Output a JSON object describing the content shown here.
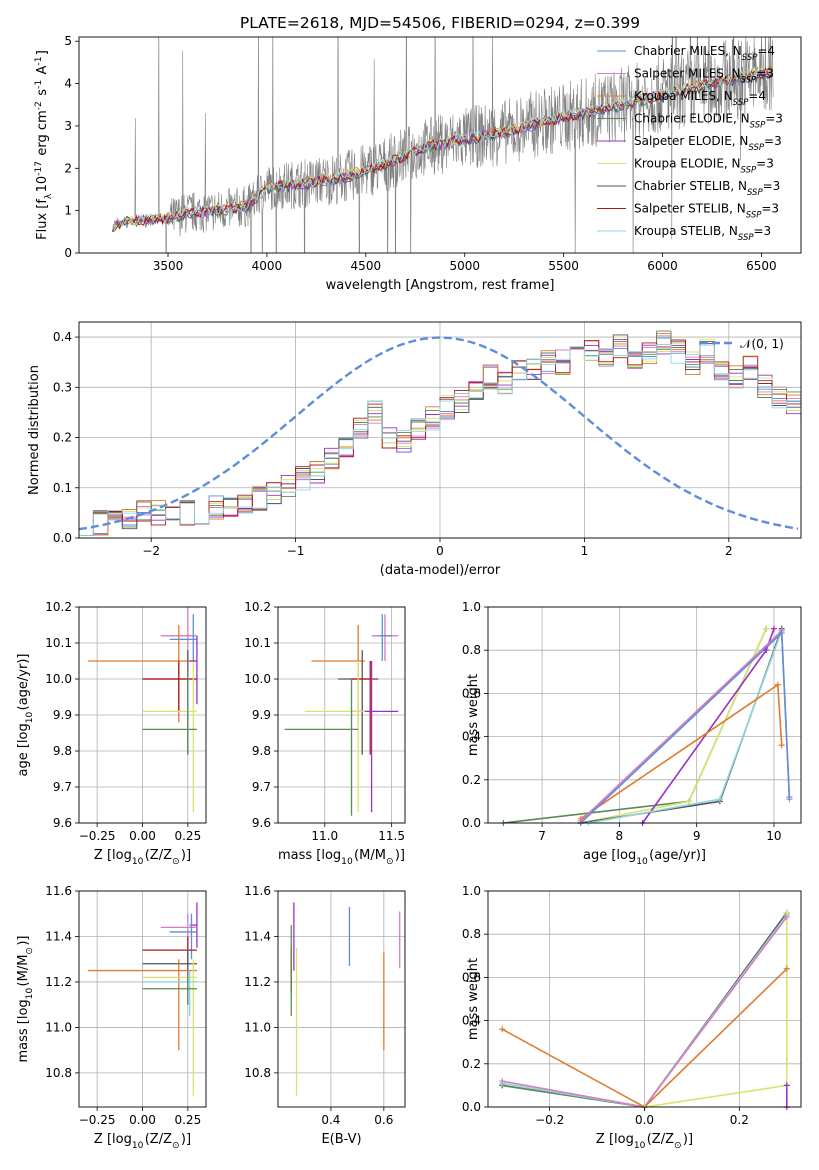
{
  "colors": {
    "Chabrier MILES": "#5b8fd6",
    "Salpeter MILES": "#d97cc0",
    "Kroupa MILES": "#e07b2e",
    "Chabrier ELODIE": "#5a8a5a",
    "Salpeter ELODIE": "#9b30c8",
    "Kroupa ELODIE": "#dbe46a",
    "Chabrier STELIB": "#555555",
    "Salpeter STELIB": "#b01818",
    "Kroupa STELIB": "#8fd6e0",
    "spectrum": "#808080",
    "normal": "#5b8fd6"
  },
  "chart_data": [
    {
      "id": "spectrum",
      "type": "line",
      "title": "PLATE=2618, MJD=54506, FIBERID=0294, z=0.399",
      "xlabel": "wavelength [Angstrom, rest frame]",
      "ylabel": "Flux [f$_\\lambda$10$^{-17}$ erg cm$^{-2}$ s$^{-1}$ A$^{-1}$]",
      "xlim": [
        3050,
        6700
      ],
      "ylim": [
        0,
        5.1
      ],
      "xticks": [
        3500,
        4000,
        4500,
        5000,
        5500,
        6000,
        6500
      ],
      "yticks": [
        0,
        1,
        2,
        3,
        4,
        5
      ],
      "grid": false,
      "legend_position": "top-right",
      "legend": [
        {
          "label": "Chabrier MILES, N",
          "sub": "SSP",
          "tail": "=4",
          "key": "Chabrier MILES"
        },
        {
          "label": "Salpeter MILES, N",
          "sub": "SSP",
          "tail": "=3",
          "key": "Salpeter MILES"
        },
        {
          "label": "Kroupa MILES, N",
          "sub": "SSP",
          "tail": "=4",
          "key": "Kroupa MILES"
        },
        {
          "label": "Chabrier ELODIE, N",
          "sub": "SSP",
          "tail": "=3",
          "key": "Chabrier ELODIE"
        },
        {
          "label": "Salpeter ELODIE, N",
          "sub": "SSP",
          "tail": "=3",
          "key": "Salpeter ELODIE"
        },
        {
          "label": "Kroupa ELODIE, N",
          "sub": "SSP",
          "tail": "=3",
          "key": "Kroupa ELODIE"
        },
        {
          "label": "Chabrier STELIB, N",
          "sub": "SSP",
          "tail": "=3",
          "key": "Chabrier STELIB"
        },
        {
          "label": "Salpeter STELIB, N",
          "sub": "SSP",
          "tail": "=3",
          "key": "Salpeter STELIB"
        },
        {
          "label": "Kroupa STELIB, N",
          "sub": "SSP",
          "tail": "=3",
          "key": "Kroupa STELIB"
        }
      ],
      "data_x_range": [
        3220,
        6560
      ],
      "model_continuum": [
        [
          3220,
          0.65
        ],
        [
          3300,
          0.75
        ],
        [
          3500,
          0.8
        ],
        [
          3600,
          0.95
        ],
        [
          3750,
          1.0
        ],
        [
          3900,
          1.1
        ],
        [
          4000,
          1.55
        ],
        [
          4200,
          1.65
        ],
        [
          4400,
          1.8
        ],
        [
          4600,
          2.1
        ],
        [
          4800,
          2.5
        ],
        [
          5000,
          2.7
        ],
        [
          5200,
          2.85
        ],
        [
          5400,
          3.1
        ],
        [
          5600,
          3.3
        ],
        [
          5800,
          3.5
        ],
        [
          6000,
          3.75
        ],
        [
          6200,
          3.95
        ],
        [
          6400,
          4.15
        ],
        [
          6560,
          4.3
        ]
      ]
    },
    {
      "id": "residuals",
      "type": "line",
      "xlabel": "(data-model)/error",
      "ylabel": "Normed distribution",
      "xlim": [
        -2.5,
        2.5
      ],
      "ylim": [
        0,
        0.43
      ],
      "xticks": [
        -2,
        -1,
        0,
        1,
        2
      ],
      "yticks": [
        0.0,
        0.1,
        0.2,
        0.3,
        0.4
      ],
      "grid": true,
      "legend_position": "top-right",
      "normal_label": "𝒩(0, 1)",
      "bin_width": 0.1,
      "hist_base": [
        0.03,
        0.03,
        0.04,
        0.04,
        0.05,
        0.05,
        0.04,
        0.05,
        0.05,
        0.06,
        0.06,
        0.07,
        0.08,
        0.09,
        0.1,
        0.12,
        0.13,
        0.16,
        0.18,
        0.22,
        0.25,
        0.2,
        0.19,
        0.22,
        0.24,
        0.26,
        0.27,
        0.29,
        0.32,
        0.31,
        0.33,
        0.34,
        0.35,
        0.35,
        0.36,
        0.37,
        0.36,
        0.38,
        0.35,
        0.37,
        0.39,
        0.37,
        0.35,
        0.37,
        0.33,
        0.32,
        0.34,
        0.3,
        0.28,
        0.27,
        0.24,
        0.22,
        0.21,
        0.19,
        0.17,
        0.14,
        0.16,
        0.12,
        0.12,
        0.11,
        0.09,
        0.09,
        0.08,
        0.07,
        0.06,
        0.06,
        0.05,
        0.06,
        0.05,
        0.05
      ]
    },
    {
      "id": "age-vs-Z",
      "type": "scatter",
      "xlabel": "Z [log$_{10}$(Z/Z$_\\odot$)]",
      "ylabel": "age  [log$_{10}$(age/yr)]",
      "xlim": [
        -0.35,
        0.35
      ],
      "ylim": [
        9.6,
        10.2
      ],
      "xticks": [
        -0.25,
        0.0,
        0.25
      ],
      "yticks": [
        9.6,
        9.7,
        9.8,
        9.9,
        10.0,
        10.1,
        10.2
      ],
      "grid": true,
      "errorbars": [
        {
          "key": "Salpeter MILES",
          "x": 0.25,
          "xlo": 0.1,
          "xhi": 0.3,
          "y": 10.12,
          "ylo": 10.05,
          "yhi": 10.2
        },
        {
          "key": "Kroupa MILES",
          "x": 0.2,
          "xlo": -0.3,
          "xhi": 0.3,
          "y": 10.05,
          "ylo": 9.88,
          "yhi": 10.15
        },
        {
          "key": "Chabrier MILES",
          "x": 0.28,
          "xlo": 0.15,
          "xhi": 0.3,
          "y": 10.11,
          "ylo": 10.05,
          "yhi": 10.18
        },
        {
          "key": "Chabrier STELIB",
          "x": 0.25,
          "xlo": 0.0,
          "xhi": 0.3,
          "y": 10.0,
          "ylo": 9.79,
          "yhi": 10.08
        },
        {
          "key": "Salpeter STELIB",
          "x": 0.2,
          "xlo": 0.0,
          "xhi": 0.3,
          "y": 10.0,
          "ylo": 9.91,
          "yhi": 10.05
        },
        {
          "key": "Kroupa ELODIE",
          "x": 0.28,
          "xlo": 0.0,
          "xhi": 0.3,
          "y": 9.91,
          "ylo": 9.63,
          "yhi": 10.05
        },
        {
          "key": "Chabrier ELODIE",
          "x": 0.25,
          "xlo": 0.0,
          "xhi": 0.3,
          "y": 9.86,
          "ylo": 9.79,
          "yhi": 10.02
        },
        {
          "key": "Salpeter ELODIE",
          "x": 0.3,
          "xlo": 0.26,
          "xhi": 0.3,
          "y": 10.05,
          "ylo": 9.93,
          "yhi": 10.12
        }
      ]
    },
    {
      "id": "age-vs-mass",
      "type": "scatter",
      "xlabel": "mass [log$_{10}$(M/M$_\\odot$)]",
      "ylabel": "",
      "xlim": [
        10.65,
        11.6
      ],
      "ylim": [
        9.6,
        10.2
      ],
      "xticks": [
        11.0,
        11.5
      ],
      "yticks": [
        9.6,
        9.7,
        9.8,
        9.9,
        10.0,
        10.1,
        10.2
      ],
      "grid": true,
      "errorbars": [
        {
          "key": "Salpeter MILES",
          "x": 11.45,
          "xlo": 11.35,
          "xhi": 11.55,
          "y": 10.12,
          "ylo": 10.05,
          "yhi": 10.18
        },
        {
          "key": "Chabrier MILES",
          "x": 11.43,
          "xlo": 11.4,
          "xhi": 11.5,
          "y": 10.12,
          "ylo": 10.05,
          "yhi": 10.18
        },
        {
          "key": "Kroupa MILES",
          "x": 11.25,
          "xlo": 10.9,
          "xhi": 11.3,
          "y": 10.05,
          "ylo": 9.88,
          "yhi": 10.15
        },
        {
          "key": "Chabrier STELIB",
          "x": 11.28,
          "xlo": 11.1,
          "xhi": 11.35,
          "y": 10.0,
          "ylo": 9.79,
          "yhi": 10.08
        },
        {
          "key": "Salpeter STELIB",
          "x": 11.34,
          "xlo": 11.2,
          "xhi": 11.4,
          "y": 10.0,
          "ylo": 9.79,
          "yhi": 10.05
        },
        {
          "key": "Salpeter ELODIE",
          "x": 11.35,
          "xlo": 11.2,
          "xhi": 11.55,
          "y": 9.91,
          "ylo": 9.63,
          "yhi": 10.05
        },
        {
          "key": "Kroupa ELODIE",
          "x": 11.25,
          "xlo": 10.85,
          "xhi": 11.3,
          "y": 9.91,
          "ylo": 9.63,
          "yhi": 10.05
        },
        {
          "key": "Chabrier ELODIE",
          "x": 11.2,
          "xlo": 10.7,
          "xhi": 11.25,
          "y": 9.86,
          "ylo": 9.62,
          "yhi": 10.0
        }
      ]
    },
    {
      "id": "weight-vs-age",
      "type": "line",
      "xlabel": "age  [log$_{10}$(age/yr)]",
      "ylabel": "mass weight",
      "xlim": [
        6.3,
        10.35
      ],
      "ylim": [
        0.0,
        1.0
      ],
      "xticks": [
        7,
        8,
        9,
        10
      ],
      "yticks": [
        0.0,
        0.2,
        0.4,
        0.6,
        0.8,
        1.0
      ],
      "grid": true,
      "series": [
        {
          "key": "Chabrier ELODIE",
          "x": [
            6.5,
            8.9,
            9.9
          ],
          "y": [
            0.0,
            0.1,
            0.9
          ]
        },
        {
          "key": "Kroupa ELODIE",
          "x": [
            7.5,
            8.9,
            9.9
          ],
          "y": [
            0.0,
            0.1,
            0.9
          ]
        },
        {
          "key": "Salpeter ELODIE",
          "x": [
            8.3,
            9.9,
            10.0
          ],
          "y": [
            0.0,
            0.8,
            0.9
          ]
        },
        {
          "key": "Chabrier STELIB",
          "x": [
            7.5,
            9.3,
            10.1
          ],
          "y": [
            0.0,
            0.1,
            0.9
          ]
        },
        {
          "key": "Kroupa STELIB",
          "x": [
            7.6,
            9.3,
            10.1
          ],
          "y": [
            0.0,
            0.11,
            0.89
          ]
        },
        {
          "key": "Kroupa MILES",
          "x": [
            7.5,
            10.05,
            10.1
          ],
          "y": [
            0.02,
            0.64,
            0.36
          ]
        },
        {
          "key": "Salpeter MILES",
          "x": [
            7.5,
            10.1,
            10.2
          ],
          "y": [
            0.01,
            0.89,
            0.11
          ]
        },
        {
          "key": "Chabrier MILES",
          "x": [
            7.5,
            10.1,
            10.2
          ],
          "y": [
            0.0,
            0.88,
            0.12
          ]
        }
      ]
    },
    {
      "id": "mass-vs-Z",
      "type": "scatter",
      "xlabel": "Z [log$_{10}$(Z/Z$_\\odot$)]",
      "ylabel": "mass [log$_{10}$(M/M$_\\odot$)]",
      "xlim": [
        -0.35,
        0.35
      ],
      "ylim": [
        10.65,
        11.6
      ],
      "xticks": [
        -0.25,
        0.0,
        0.25
      ],
      "yticks": [
        10.8,
        11.0,
        11.2,
        11.4,
        11.6
      ],
      "grid": true,
      "errorbars": [
        {
          "key": "Salpeter ELODIE",
          "x": 0.3,
          "xlo": 0.26,
          "xhi": 0.3,
          "y": 11.45,
          "ylo": 11.35,
          "yhi": 11.55
        },
        {
          "key": "Salpeter MILES",
          "x": 0.25,
          "xlo": 0.1,
          "xhi": 0.3,
          "y": 11.44,
          "ylo": 11.35,
          "yhi": 11.5
        },
        {
          "key": "Chabrier MILES",
          "x": 0.27,
          "xlo": 0.15,
          "xhi": 0.3,
          "y": 11.42,
          "ylo": 11.3,
          "yhi": 11.5
        },
        {
          "key": "Salpeter STELIB",
          "x": 0.25,
          "xlo": 0.0,
          "xhi": 0.3,
          "y": 11.34,
          "ylo": 11.2,
          "yhi": 11.4
        },
        {
          "key": "Chabrier STELIB",
          "x": 0.25,
          "xlo": 0.0,
          "xhi": 0.3,
          "y": 11.28,
          "ylo": 11.1,
          "yhi": 11.35
        },
        {
          "key": "Kroupa MILES",
          "x": 0.2,
          "xlo": -0.3,
          "xhi": 0.3,
          "y": 11.25,
          "ylo": 10.9,
          "yhi": 11.3
        },
        {
          "key": "Kroupa ELODIE",
          "x": 0.28,
          "xlo": 0.0,
          "xhi": 0.3,
          "y": 11.22,
          "ylo": 10.7,
          "yhi": 11.3
        },
        {
          "key": "Kroupa STELIB",
          "x": 0.26,
          "xlo": 0.0,
          "xhi": 0.3,
          "y": 11.2,
          "ylo": 11.05,
          "yhi": 11.25
        },
        {
          "key": "Chabrier ELODIE",
          "x": 0.25,
          "xlo": 0.0,
          "xhi": 0.3,
          "y": 11.17,
          "ylo": 11.1,
          "yhi": 11.25
        }
      ]
    },
    {
      "id": "mass-vs-EBV",
      "type": "scatter",
      "xlabel": "E(B-V)",
      "ylabel": "",
      "xlim": [
        0.2,
        0.68
      ],
      "ylim": [
        10.65,
        11.6
      ],
      "xticks": [
        0.4,
        0.6
      ],
      "yticks": [
        10.8,
        11.0,
        11.2,
        11.4,
        11.6
      ],
      "grid": true,
      "errorbars": [
        {
          "key": "Chabrier STELIB",
          "x": 0.25,
          "ylo": 11.15,
          "yhi": 11.3
        },
        {
          "key": "Salpeter STELIB",
          "x": 0.25,
          "ylo": 11.17,
          "yhi": 11.35
        },
        {
          "key": "Chabrier ELODIE",
          "x": 0.25,
          "ylo": 11.05,
          "yhi": 11.45
        },
        {
          "key": "Salpeter ELODIE",
          "x": 0.26,
          "ylo": 11.25,
          "yhi": 11.55
        },
        {
          "key": "Kroupa ELODIE",
          "x": 0.27,
          "ylo": 10.7,
          "yhi": 11.35
        },
        {
          "key": "Chabrier MILES",
          "x": 0.47,
          "ylo": 11.27,
          "yhi": 11.53
        },
        {
          "key": "Kroupa MILES",
          "x": 0.6,
          "ylo": 10.9,
          "yhi": 11.33
        },
        {
          "key": "Salpeter MILES",
          "x": 0.66,
          "ylo": 11.26,
          "yhi": 11.51
        }
      ]
    },
    {
      "id": "weight-vs-Z",
      "type": "line",
      "xlabel": "Z [log$_{10}$(Z/Z$_\\odot$)]",
      "ylabel": "mass weight",
      "xlim": [
        -0.33,
        0.33
      ],
      "ylim": [
        0.0,
        1.0
      ],
      "xticks": [
        -0.2,
        0.0,
        0.2
      ],
      "yticks": [
        0.0,
        0.2,
        0.4,
        0.6,
        0.8,
        1.0
      ],
      "grid": true,
      "series": [
        {
          "key": "Chabrier STELIB",
          "x": [
            -0.3,
            0.0,
            0.3
          ],
          "y": [
            0.1,
            0.0,
            0.9
          ]
        },
        {
          "key": "Chabrier ELODIE",
          "x": [
            -0.3,
            0.0,
            0.3
          ],
          "y": [
            0.1,
            0.0,
            0.89
          ]
        },
        {
          "key": "Kroupa STELIB",
          "x": [
            -0.3,
            0.0,
            0.3
          ],
          "y": [
            0.11,
            0.0,
            0.89
          ]
        },
        {
          "key": "Salpeter MILES",
          "x": [
            -0.3,
            0.0,
            0.3
          ],
          "y": [
            0.12,
            0.0,
            0.88
          ]
        },
        {
          "key": "Kroupa MILES",
          "x": [
            -0.3,
            0.0,
            0.3
          ],
          "y": [
            0.36,
            0.0,
            0.64
          ]
        },
        {
          "key": "Kroupa ELODIE",
          "x": [
            0.0,
            0.3,
            0.3
          ],
          "y": [
            0.0,
            0.1,
            0.9
          ]
        },
        {
          "key": "Salpeter ELODIE",
          "x": [
            0.3,
            0.3
          ],
          "y": [
            0.0,
            0.1
          ]
        }
      ]
    }
  ]
}
